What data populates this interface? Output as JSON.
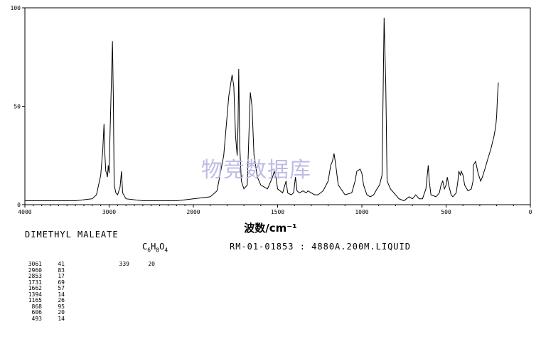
{
  "chart_data": {
    "type": "line",
    "x_range": [
      4000,
      0
    ],
    "y_range": [
      0,
      100
    ],
    "x_ticks": [
      "4000",
      "3000",
      "2000",
      "1500",
      "1000",
      "500",
      "0"
    ],
    "x_tick_values": [
      4000,
      3000,
      2000,
      1500,
      1000,
      500,
      0
    ],
    "y_ticks": [
      "0",
      "50",
      "100"
    ],
    "y_tick_values": [
      0,
      50,
      100
    ],
    "xlabel": "波数/cm⁻¹",
    "series": [
      {
        "values": [
          [
            4000,
            2
          ],
          [
            3400,
            2
          ],
          [
            3200,
            3
          ],
          [
            3150,
            5
          ],
          [
            3100,
            15
          ],
          [
            3075,
            28
          ],
          [
            3061,
            41
          ],
          [
            3050,
            25
          ],
          [
            3040,
            17
          ],
          [
            3030,
            16
          ],
          [
            3020,
            14
          ],
          [
            3010,
            20
          ],
          [
            3000,
            16
          ],
          [
            2990,
            35
          ],
          [
            2975,
            60
          ],
          [
            2960,
            83
          ],
          [
            2950,
            55
          ],
          [
            2940,
            10
          ],
          [
            2920,
            6
          ],
          [
            2900,
            5
          ],
          [
            2870,
            9
          ],
          [
            2853,
            17
          ],
          [
            2840,
            6
          ],
          [
            2800,
            3
          ],
          [
            2600,
            2
          ],
          [
            2200,
            2
          ],
          [
            2000,
            3
          ],
          [
            1900,
            4
          ],
          [
            1860,
            7
          ],
          [
            1820,
            25
          ],
          [
            1790,
            55
          ],
          [
            1770,
            66
          ],
          [
            1760,
            60
          ],
          [
            1750,
            35
          ],
          [
            1740,
            25
          ],
          [
            1735,
            40
          ],
          [
            1731,
            69
          ],
          [
            1725,
            30
          ],
          [
            1715,
            12
          ],
          [
            1700,
            8
          ],
          [
            1680,
            10
          ],
          [
            1662,
            57
          ],
          [
            1652,
            50
          ],
          [
            1640,
            25
          ],
          [
            1620,
            14
          ],
          [
            1600,
            10
          ],
          [
            1560,
            8
          ],
          [
            1530,
            14
          ],
          [
            1520,
            17
          ],
          [
            1510,
            14
          ],
          [
            1500,
            8
          ],
          [
            1470,
            6
          ],
          [
            1450,
            12
          ],
          [
            1440,
            6
          ],
          [
            1420,
            5
          ],
          [
            1405,
            6
          ],
          [
            1394,
            14
          ],
          [
            1385,
            7
          ],
          [
            1370,
            6
          ],
          [
            1350,
            7
          ],
          [
            1330,
            6
          ],
          [
            1320,
            7
          ],
          [
            1300,
            6
          ],
          [
            1280,
            5
          ],
          [
            1260,
            5
          ],
          [
            1230,
            7
          ],
          [
            1200,
            12
          ],
          [
            1185,
            20
          ],
          [
            1175,
            22
          ],
          [
            1165,
            26
          ],
          [
            1155,
            20
          ],
          [
            1140,
            10
          ],
          [
            1100,
            5
          ],
          [
            1060,
            6
          ],
          [
            1040,
            12
          ],
          [
            1030,
            17
          ],
          [
            1010,
            18
          ],
          [
            1000,
            16
          ],
          [
            990,
            10
          ],
          [
            970,
            5
          ],
          [
            950,
            4
          ],
          [
            930,
            5
          ],
          [
            910,
            8
          ],
          [
            895,
            10
          ],
          [
            880,
            15
          ],
          [
            868,
            95
          ],
          [
            858,
            60
          ],
          [
            850,
            12
          ],
          [
            840,
            10
          ],
          [
            830,
            8
          ],
          [
            800,
            5
          ],
          [
            780,
            3
          ],
          [
            750,
            2
          ],
          [
            720,
            4
          ],
          [
            700,
            3
          ],
          [
            680,
            5
          ],
          [
            660,
            3
          ],
          [
            640,
            3
          ],
          [
            620,
            8
          ],
          [
            606,
            20
          ],
          [
            600,
            12
          ],
          [
            590,
            5
          ],
          [
            560,
            4
          ],
          [
            540,
            6
          ],
          [
            530,
            10
          ],
          [
            520,
            12
          ],
          [
            510,
            8
          ],
          [
            500,
            10
          ],
          [
            493,
            14
          ],
          [
            485,
            10
          ],
          [
            470,
            5
          ],
          [
            460,
            4
          ],
          [
            440,
            6
          ],
          [
            430,
            12
          ],
          [
            425,
            17
          ],
          [
            415,
            15
          ],
          [
            410,
            17
          ],
          [
            400,
            15
          ],
          [
            390,
            10
          ],
          [
            370,
            7
          ],
          [
            350,
            8
          ],
          [
            340,
            12
          ],
          [
            339,
            20
          ],
          [
            325,
            22
          ],
          [
            310,
            16
          ],
          [
            295,
            12
          ],
          [
            285,
            14
          ],
          [
            270,
            18
          ],
          [
            250,
            24
          ],
          [
            235,
            28
          ],
          [
            215,
            35
          ],
          [
            205,
            40
          ],
          [
            200,
            45
          ],
          [
            195,
            55
          ],
          [
            190,
            62
          ]
        ]
      }
    ]
  },
  "xlabel": "波数/cm⁻¹",
  "watermark": "物竞数据库",
  "compound": "DIMETHYL MALEATE",
  "formula": {
    "c": "C",
    "c_n": "6",
    "h": "H",
    "h_n": "8",
    "o": "O",
    "o_n": "4"
  },
  "catalog": "RM-01-01853 : 4880A.200M.LIQUID",
  "peaks_left": [
    {
      "wn": "3061",
      "i": "41"
    },
    {
      "wn": "2960",
      "i": "83"
    },
    {
      "wn": "2853",
      "i": "17"
    },
    {
      "wn": "1731",
      "i": "69"
    },
    {
      "wn": "1662",
      "i": "57"
    },
    {
      "wn": "1394",
      "i": "14"
    },
    {
      "wn": "1165",
      "i": "26"
    },
    {
      "wn": "868",
      "i": "95"
    },
    {
      "wn": "606",
      "i": "20"
    },
    {
      "wn": "493",
      "i": "14"
    }
  ],
  "peaks_right": [
    {
      "wn": "339",
      "i": "20"
    }
  ]
}
